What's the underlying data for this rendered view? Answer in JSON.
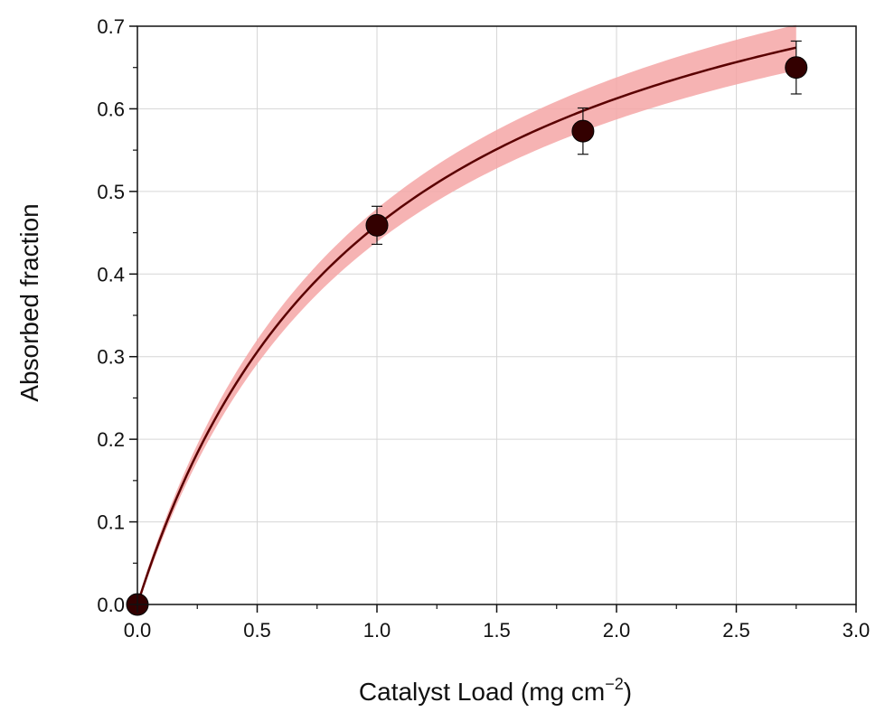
{
  "chart_data": {
    "type": "scatter",
    "title": "",
    "xlabel_main": "Catalyst Load (mg cm",
    "xlabel_sup": "−2",
    "xlabel_close": ")",
    "ylabel": "Absorbed fraction",
    "xlim": [
      0,
      3.0
    ],
    "ylim": [
      0,
      0.7
    ],
    "x_ticks": [
      "0.0",
      "0.5",
      "1.0",
      "1.5",
      "2.0",
      "2.5",
      "3.0"
    ],
    "y_ticks": [
      "0.0",
      "0.1",
      "0.2",
      "0.3",
      "0.4",
      "0.5",
      "0.6",
      "0.7"
    ],
    "grid": true,
    "series": [
      {
        "points": [
          {
            "x": 0.0,
            "y": 0.0,
            "err": 0.0
          },
          {
            "x": 1.0,
            "y": 0.459,
            "err": 0.023
          },
          {
            "x": 1.86,
            "y": 0.573,
            "err": 0.028
          },
          {
            "x": 2.75,
            "y": 0.65,
            "err": 0.032
          }
        ],
        "marker_color": "#330000"
      }
    ],
    "fit": {
      "model": "y = a*x/(b+x)",
      "a": 0.9205,
      "b": 1.0054,
      "band_relative": 0.035,
      "line_color": "#5a0000",
      "band_color": "#f4a6a6"
    }
  }
}
